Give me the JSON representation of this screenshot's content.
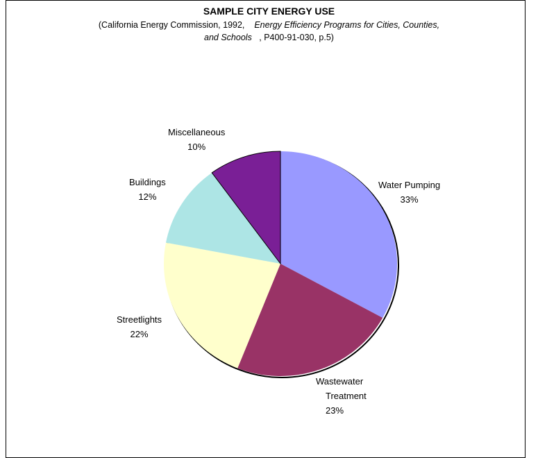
{
  "chart_data": {
    "type": "pie",
    "title": "SAMPLE CITY ENERGY USE",
    "subtitle": {
      "source_prefix": "(California Energy Commission, 1992,",
      "source_title_part1": "Energy Efficiency Programs for Cities, Counties,",
      "source_title_part2": "and Schools",
      "source_suffix": ", P400-91-030, p.5)"
    },
    "slices": [
      {
        "label": "Water Pumping",
        "value": 33,
        "value_label": "33%",
        "color": "#9999ff"
      },
      {
        "label": "Wastewater Treatment",
        "label_lines": [
          "Wastewater",
          "Treatment"
        ],
        "value": 23,
        "value_label": "23%",
        "color": "#993366"
      },
      {
        "label": "Streetlights",
        "value": 22,
        "value_label": "22%",
        "color": "#ffffcc"
      },
      {
        "label": "Buildings",
        "value": 12,
        "value_label": "12%",
        "color": "#ade5e5"
      },
      {
        "label": "Miscellaneous",
        "value": 10,
        "value_label": "10%",
        "color": "#7a1f96"
      }
    ],
    "start": "12 o'clock",
    "direction": "clockwise"
  }
}
